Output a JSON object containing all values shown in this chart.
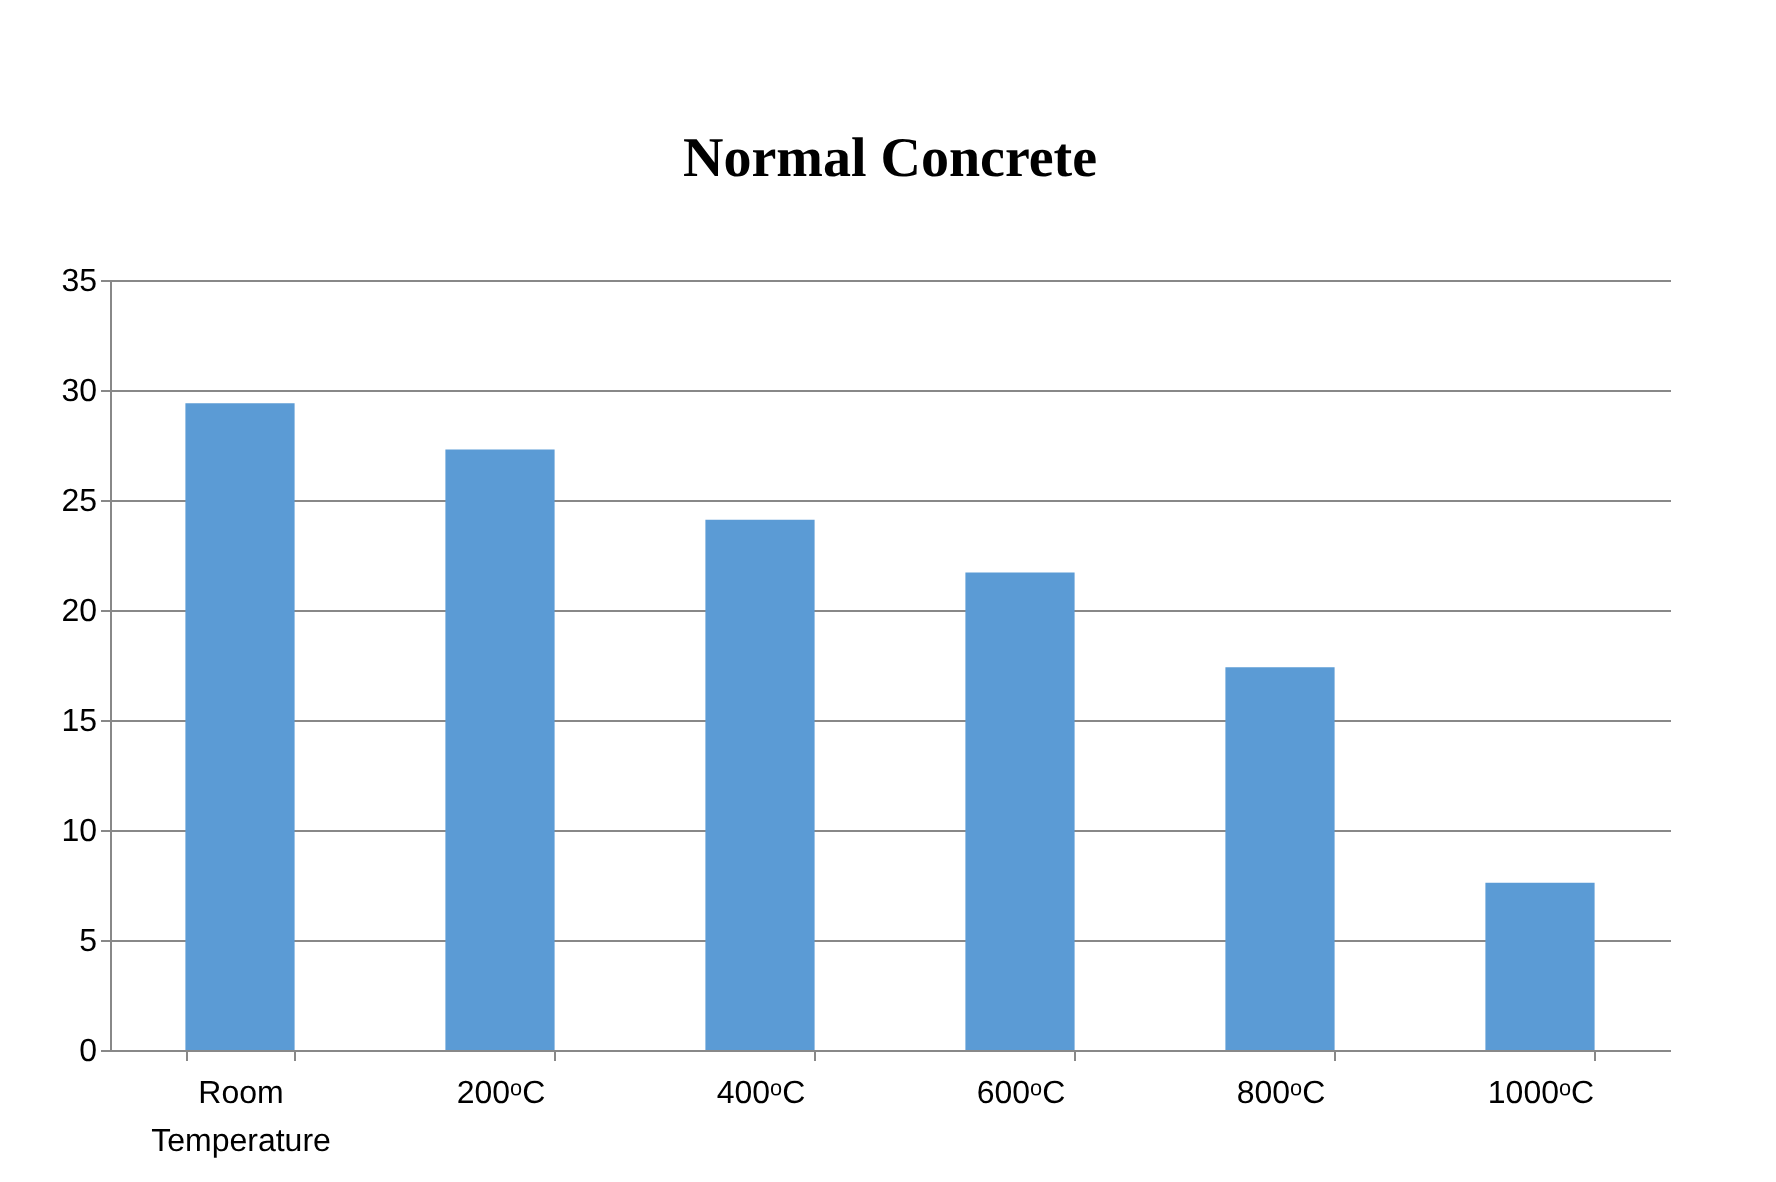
{
  "chart_data": {
    "type": "bar",
    "title": "Normal Concrete",
    "categories": [
      "Room Temperature",
      "200ᵒC",
      "400ᵒC",
      "600ᵒC",
      "800ᵒC",
      "1000ᵒC"
    ],
    "values": [
      29.4,
      27.3,
      24.1,
      21.7,
      17.4,
      7.6
    ],
    "color": "#5b9bd5",
    "ylim": [
      0,
      35
    ],
    "yticks": [
      0,
      5,
      10,
      15,
      20,
      25,
      30,
      35
    ],
    "grid": "y"
  }
}
